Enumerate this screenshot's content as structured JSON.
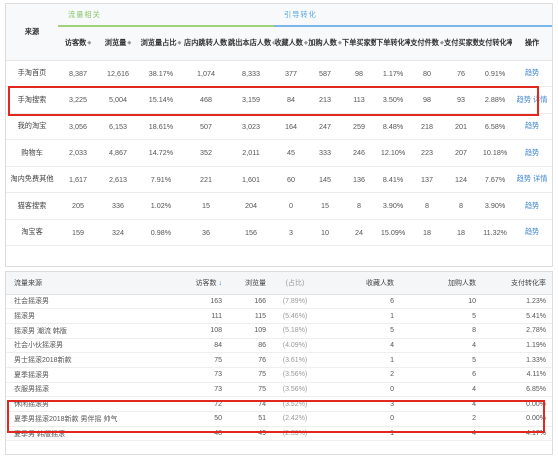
{
  "top": {
    "group1": "流量相关",
    "group2": "引导转化",
    "headers": [
      "来源",
      "访客数",
      "浏览量",
      "浏览量占比",
      "店内跳转人数",
      "跳出本店人数",
      "收藏人数",
      "加购人数",
      "下单买家数",
      "下单转化率",
      "支付件数",
      "支付买家数",
      "支付转化率",
      "操作"
    ],
    "rows": [
      {
        "src": "手淘首页",
        "v": [
          "8,387",
          "12,616",
          "38.17%",
          "1,074",
          "8,333",
          "377",
          "587",
          "98",
          "1.17%",
          "80",
          "76",
          "0.91%"
        ],
        "ops": [
          "趋势"
        ]
      },
      {
        "src": "手淘搜索",
        "v": [
          "3,225",
          "5,004",
          "15.14%",
          "468",
          "3,159",
          "84",
          "213",
          "113",
          "3.50%",
          "98",
          "93",
          "2.88%"
        ],
        "ops": [
          "趋势",
          "详情"
        ]
      },
      {
        "src": "我的淘宝",
        "v": [
          "3,056",
          "6,153",
          "18.61%",
          "507",
          "3,023",
          "164",
          "247",
          "259",
          "8.48%",
          "218",
          "201",
          "6.58%"
        ],
        "ops": [
          "趋势"
        ]
      },
      {
        "src": "购物车",
        "v": [
          "2,033",
          "4,867",
          "14.72%",
          "352",
          "2,011",
          "45",
          "333",
          "246",
          "12.10%",
          "223",
          "207",
          "10.18%"
        ],
        "ops": [
          "趋势"
        ]
      },
      {
        "src": "淘内免费其他",
        "v": [
          "1,617",
          "2,613",
          "7.91%",
          "221",
          "1,601",
          "60",
          "145",
          "136",
          "8.41%",
          "137",
          "124",
          "7.67%"
        ],
        "ops": [
          "趋势",
          "详情"
        ]
      },
      {
        "src": "猫客搜索",
        "v": [
          "205",
          "336",
          "1.02%",
          "15",
          "204",
          "0",
          "15",
          "8",
          "3.90%",
          "8",
          "8",
          "3.90%"
        ],
        "ops": [
          "趋势"
        ]
      },
      {
        "src": "淘宝客",
        "v": [
          "159",
          "324",
          "0.98%",
          "36",
          "156",
          "3",
          "10",
          "24",
          "15.09%",
          "18",
          "18",
          "11.32%"
        ],
        "ops": [
          "趋势"
        ]
      }
    ]
  },
  "bottom": {
    "headers": {
      "source": "流量来源",
      "visitors": "访客数",
      "views": "浏览量",
      "share": "(占比)",
      "fav": "收藏人数",
      "cart": "加购人数",
      "pay": "支付转化率"
    },
    "rows": [
      {
        "src": "社会摇滚男",
        "visitors": "163",
        "views": "166",
        "share": "(7.89%)",
        "fav": "6",
        "cart": "10",
        "pay": "1.23%"
      },
      {
        "src": "摇滚男",
        "visitors": "111",
        "views": "115",
        "share": "(5.46%)",
        "fav": "1",
        "cart": "5",
        "pay": "5.41%"
      },
      {
        "src": "摇滚男 潮流 韩版",
        "visitors": "108",
        "views": "109",
        "share": "(5.18%)",
        "fav": "5",
        "cart": "8",
        "pay": "2.78%"
      },
      {
        "src": "社会小伙摇滚男",
        "visitors": "84",
        "views": "86",
        "share": "(4.09%)",
        "fav": "4",
        "cart": "4",
        "pay": "1.19%"
      },
      {
        "src": "男士摇滚2018新款",
        "visitors": "75",
        "views": "76",
        "share": "(3.61%)",
        "fav": "1",
        "cart": "5",
        "pay": "1.33%"
      },
      {
        "src": "夏季摇滚男",
        "visitors": "73",
        "views": "75",
        "share": "(3.56%)",
        "fav": "2",
        "cart": "6",
        "pay": "4.11%"
      },
      {
        "src": "衣服男摇滚",
        "visitors": "73",
        "views": "75",
        "share": "(3.56%)",
        "fav": "0",
        "cart": "4",
        "pay": "6.85%"
      },
      {
        "src": "休闲摇滚男",
        "visitors": "72",
        "views": "74",
        "share": "(3.52%)",
        "fav": "3",
        "cart": "4",
        "pay": "0.00%"
      },
      {
        "src": "夏季男摇滚2018新款 男伴摇 帅气",
        "visitors": "50",
        "views": "51",
        "share": "(2.42%)",
        "fav": "0",
        "cart": "2",
        "pay": "0.00%"
      },
      {
        "src": "夏季男 韩版摇滚",
        "visitors": "48",
        "views": "49",
        "share": "(2.33%)",
        "fav": "1",
        "cart": "4",
        "pay": "4.17%"
      }
    ]
  }
}
